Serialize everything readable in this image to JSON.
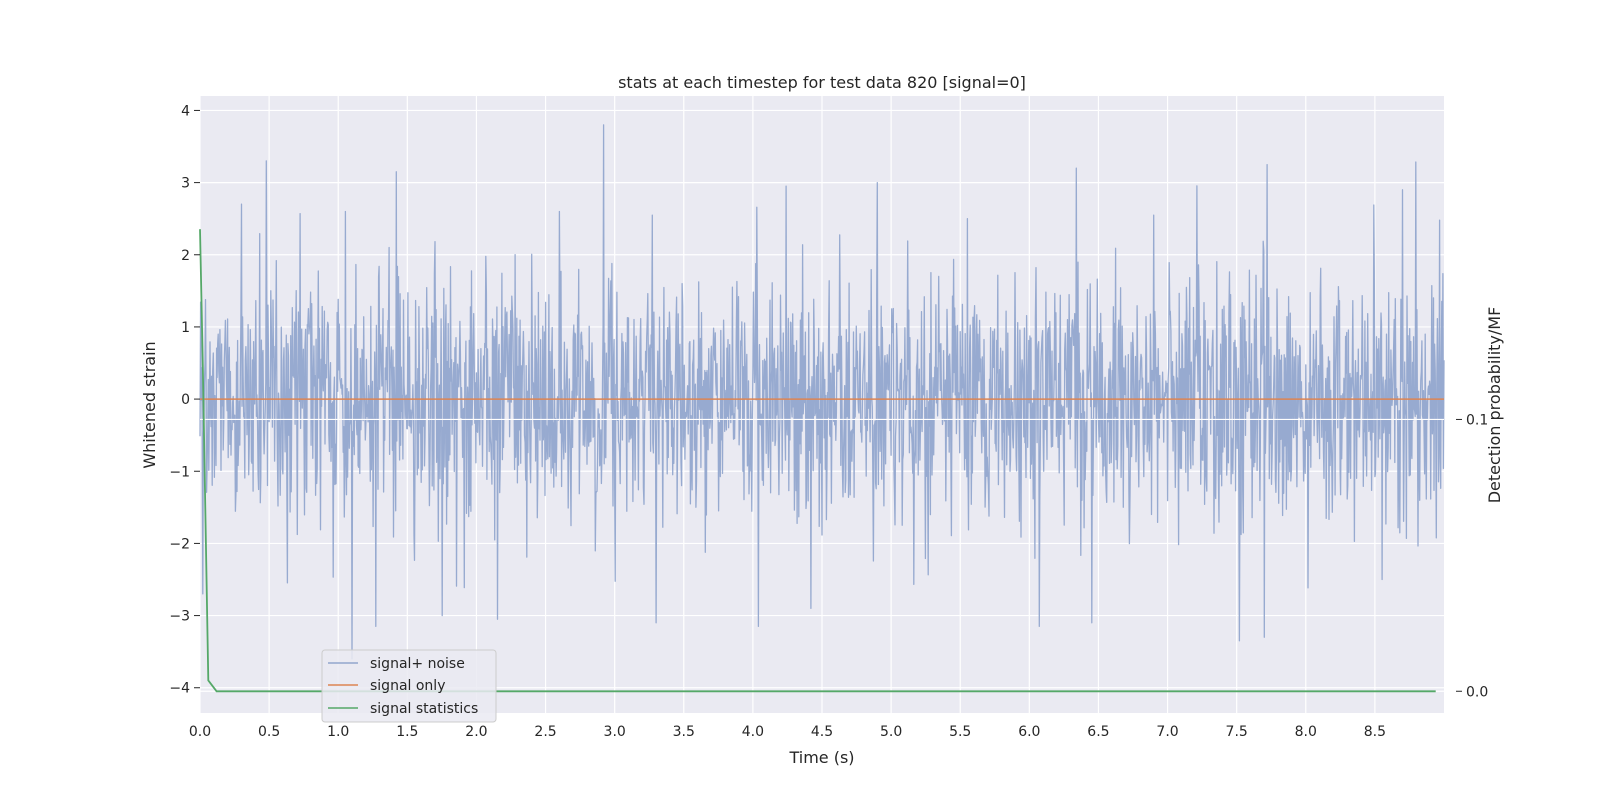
{
  "chart_data": {
    "type": "line",
    "title": "stats at each timestep for test data 820 [signal=0]",
    "xlabel": "Time (s)",
    "ylabel": "Whitened strain",
    "y2label": "Detection probability/MF",
    "xlim": [
      0.0,
      9.0
    ],
    "ylim": [
      -4.35,
      4.2
    ],
    "y2lim": [
      -0.008,
      0.219
    ],
    "xticks": [
      "0.0",
      "0.5",
      "1.0",
      "1.5",
      "2.0",
      "2.5",
      "3.0",
      "3.5",
      "4.0",
      "4.5",
      "5.0",
      "5.5",
      "6.0",
      "6.5",
      "7.0",
      "7.5",
      "8.0",
      "8.5"
    ],
    "yticks": [
      "4",
      "3",
      "2",
      "1",
      "0",
      "−1",
      "−2",
      "−3",
      "−4"
    ],
    "y2ticks": [
      "0.1",
      "0.0"
    ],
    "grid": true,
    "legend_position": "lower-left",
    "series": [
      {
        "name": "signal+ noise",
        "axis": "left",
        "color": "#92a6cd",
        "noise_std": 0.85,
        "sample_step": 0.004,
        "peaks": [
          {
            "x": 0.48,
            "y": 3.3
          },
          {
            "x": 1.42,
            "y": 3.15
          },
          {
            "x": 2.92,
            "y": 3.8
          },
          {
            "x": 3.27,
            "y": 2.55
          },
          {
            "x": 4.24,
            "y": 2.95
          },
          {
            "x": 4.9,
            "y": 3.0
          },
          {
            "x": 6.34,
            "y": 3.2
          },
          {
            "x": 7.72,
            "y": 3.25
          },
          {
            "x": 8.7,
            "y": 2.9
          },
          {
            "x": 0.3,
            "y": 2.7
          },
          {
            "x": 1.05,
            "y": 2.6
          },
          {
            "x": 2.6,
            "y": 2.6
          },
          {
            "x": 5.55,
            "y": 2.5
          },
          {
            "x": 6.9,
            "y": 2.55
          },
          {
            "x": 1.1,
            "y": -3.6
          },
          {
            "x": 1.27,
            "y": -3.15
          },
          {
            "x": 3.3,
            "y": -3.1
          },
          {
            "x": 4.04,
            "y": -3.15
          },
          {
            "x": 6.07,
            "y": -3.15
          },
          {
            "x": 6.45,
            "y": -3.1
          },
          {
            "x": 7.52,
            "y": -3.35
          },
          {
            "x": 7.7,
            "y": -3.3
          },
          {
            "x": 0.02,
            "y": -2.7
          },
          {
            "x": 1.75,
            "y": -3.0
          },
          {
            "x": 2.15,
            "y": -3.05
          },
          {
            "x": 4.42,
            "y": -2.9
          },
          {
            "x": 8.55,
            "y": -2.5
          }
        ]
      },
      {
        "name": "signal only",
        "axis": "left",
        "color": "#dd8452",
        "x": [
          0.0,
          9.0
        ],
        "y": [
          0.0,
          0.0
        ]
      },
      {
        "name": "signal statistics",
        "axis": "right",
        "color": "#55a868",
        "x": [
          0.0,
          0.02,
          0.06,
          0.12,
          1.0,
          2.0,
          3.0,
          4.0,
          5.0,
          6.0,
          7.0,
          8.0,
          8.94
        ],
        "y": [
          0.17,
          0.12,
          0.004,
          0.0,
          0.0,
          0.0,
          0.0,
          0.0,
          0.0,
          0.0,
          0.0,
          0.0,
          0.0
        ]
      }
    ]
  }
}
